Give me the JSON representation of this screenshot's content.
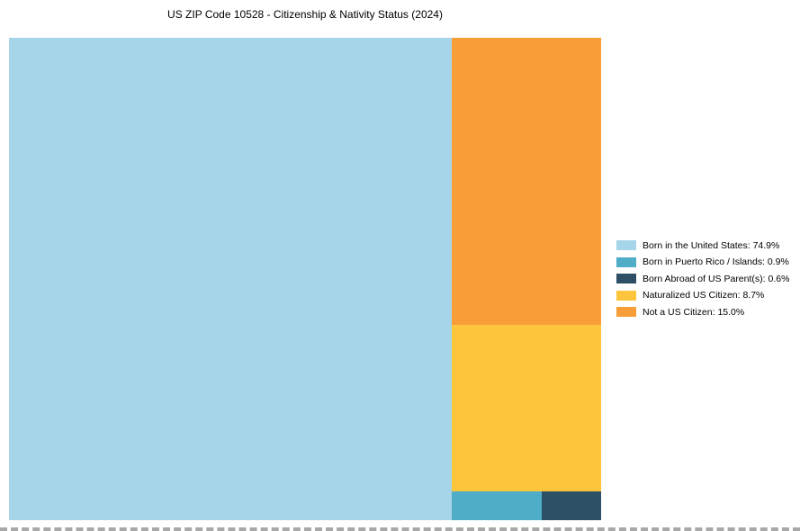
{
  "chart_data": {
    "type": "treemap",
    "title": "US ZIP Code 10528 - Citizenship & Nativity Status (2024)",
    "legend_position": "right",
    "grid": false,
    "segments": [
      {
        "label": "Born in the United States",
        "value": 74.9,
        "color": "#A6D4E8",
        "legend_text": "Born in the United States: 74.9%"
      },
      {
        "label": "Born in Puerto Rico / Islands",
        "value": 0.9,
        "color": "#4FADC8",
        "legend_text": "Born in Puerto Rico / Islands: 0.9%"
      },
      {
        "label": "Born Abroad of US Parent(s)",
        "value": 0.6,
        "color": "#2E5066",
        "legend_text": "Born Abroad of US Parent(s): 0.6%"
      },
      {
        "label": "Naturalized US Citizen",
        "value": 8.7,
        "color": "#FDC53C",
        "legend_text": "Naturalized US Citizen: 8.7%"
      },
      {
        "label": "Not a US Citizen",
        "value": 15.0,
        "color": "#F89E38",
        "legend_text": "Not a US Citizen: 15.0%"
      }
    ]
  }
}
